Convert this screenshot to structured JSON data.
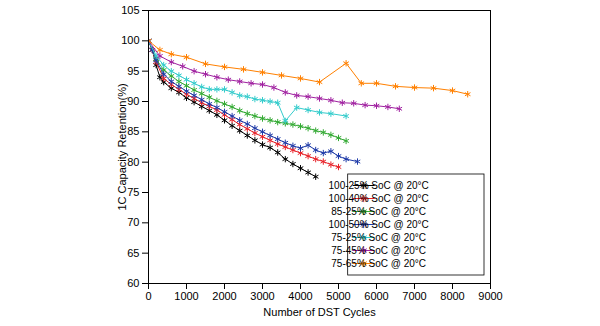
{
  "chart_data": {
    "type": "line",
    "x_label": "Number of DST Cycles",
    "y_label": "1C Capacity Retention(%)",
    "xlim": [
      0,
      9000
    ],
    "xticks": [
      0,
      1000,
      2000,
      3000,
      4000,
      5000,
      6000,
      7000,
      8000,
      9000
    ],
    "ylim": [
      60,
      105
    ],
    "yticks": [
      60,
      65,
      70,
      75,
      80,
      85,
      90,
      95,
      100,
      105
    ],
    "grid": false,
    "legend": "lower right",
    "marker": "asterisk",
    "series": [
      {
        "name": "100-25% SoC @ 20°C",
        "color": "#000000",
        "x": [
          0,
          100,
          200,
          300,
          400,
          600,
          800,
          1000,
          1200,
          1400,
          1600,
          1800,
          2000,
          2200,
          2400,
          2600,
          2800,
          3000,
          3200,
          3400,
          3600,
          3800,
          4000,
          4200,
          4400
        ],
        "values": [
          100,
          98.5,
          96,
          94,
          93.2,
          92.2,
          91.5,
          90.6,
          89.9,
          89.2,
          88.5,
          87.8,
          86.9,
          86,
          85.2,
          84.4,
          83.6,
          82.9,
          82.4,
          81.6,
          80.5,
          79.7,
          79,
          78.3,
          77.6
        ]
      },
      {
        "name": "100-40% SoC @ 20°C",
        "color": "#e8232a",
        "x": [
          0,
          100,
          200,
          400,
          600,
          800,
          1000,
          1200,
          1400,
          1600,
          1800,
          2000,
          2200,
          2400,
          2600,
          2800,
          3000,
          3200,
          3400,
          3600,
          3800,
          4000,
          4200,
          4400,
          4600,
          4800,
          5000
        ],
        "values": [
          100,
          98.5,
          96.5,
          93.8,
          92.8,
          92,
          91.2,
          90.5,
          89.8,
          89.2,
          88.6,
          87.8,
          87,
          86.2,
          85.5,
          84.8,
          84.2,
          83.6,
          83,
          82.5,
          82,
          81.5,
          81,
          80.5,
          80.1,
          79.6,
          79.2
        ]
      },
      {
        "name": "85-25% SoC @ 20°C",
        "color": "#33aa33",
        "x": [
          0,
          200,
          400,
          600,
          800,
          1000,
          1200,
          1400,
          1600,
          1800,
          2000,
          2200,
          2400,
          2600,
          2800,
          3000,
          3200,
          3400,
          3600,
          3800,
          4000,
          4200,
          4400,
          4600,
          4800,
          5000,
          5200
        ],
        "values": [
          100,
          97,
          95.2,
          94.2,
          93.3,
          92.6,
          91.9,
          91.3,
          90.7,
          90.1,
          89.6,
          89.1,
          88.5,
          88,
          87.6,
          87.2,
          86.9,
          86.6,
          86.4,
          86.2,
          85.9,
          85.6,
          85.2,
          84.9,
          84.5,
          84,
          83.5
        ]
      },
      {
        "name": "100-50% SoC @ 20°C",
        "color": "#1f3ba8",
        "x": [
          0,
          100,
          200,
          400,
          600,
          800,
          1000,
          1200,
          1400,
          1600,
          1800,
          2000,
          2200,
          2400,
          2600,
          2800,
          3000,
          3200,
          3400,
          3600,
          3800,
          4000,
          4200,
          4400,
          4600,
          4800,
          5000,
          5200,
          5500
        ],
        "values": [
          100,
          98.5,
          96.8,
          94.5,
          93.3,
          92.5,
          91.7,
          91,
          90.3,
          89.6,
          89,
          88.3,
          87.6,
          86.9,
          86.3,
          85.6,
          85,
          84.4,
          83.8,
          83.2,
          82.7,
          82.3,
          82.8,
          82,
          81.5,
          81.8,
          81,
          80.5,
          80.1
        ]
      },
      {
        "name": "75-25% SoC @ 20°C",
        "color": "#33cccc",
        "x": [
          0,
          200,
          400,
          600,
          800,
          1000,
          1200,
          1400,
          1600,
          1800,
          2000,
          2200,
          2400,
          2600,
          2800,
          3000,
          3200,
          3400,
          3600,
          3900,
          4200,
          4500,
          4800,
          5200
        ],
        "values": [
          100,
          97.5,
          96,
          95,
          94.3,
          93.6,
          93,
          92.4,
          92,
          92,
          92,
          91.5,
          91,
          90.8,
          90.4,
          90.2,
          90,
          89.8,
          86.8,
          89,
          88.6,
          88.2,
          88,
          87.6
        ]
      },
      {
        "name": "75-45% SoC @ 20°C",
        "color": "#a020a0",
        "x": [
          0,
          300,
          600,
          900,
          1200,
          1500,
          1800,
          2100,
          2400,
          2700,
          3000,
          3300,
          3600,
          3900,
          4200,
          4500,
          4800,
          5100,
          5400,
          5700,
          6000,
          6300,
          6600
        ],
        "values": [
          100,
          97.5,
          96.5,
          95.8,
          95,
          94.5,
          94,
          93.6,
          93.3,
          93,
          92.8,
          92.3,
          91.5,
          91,
          90.8,
          90.5,
          90.2,
          89.8,
          89.7,
          89.4,
          89.3,
          89.1,
          88.8
        ]
      },
      {
        "name": "75-65% SoC @ 20°C",
        "color": "#ff8000",
        "x": [
          0,
          300,
          600,
          1000,
          1500,
          2000,
          2500,
          3000,
          3500,
          4000,
          4500,
          5200,
          5600,
          6000,
          6500,
          7000,
          7500,
          8000,
          8400
        ],
        "values": [
          100,
          98.5,
          97.8,
          97.3,
          96.2,
          95.7,
          95.3,
          94.8,
          94.3,
          93.8,
          93.2,
          96.3,
          93,
          93,
          92.5,
          92.3,
          92.2,
          91.8,
          91.2
        ]
      }
    ]
  }
}
